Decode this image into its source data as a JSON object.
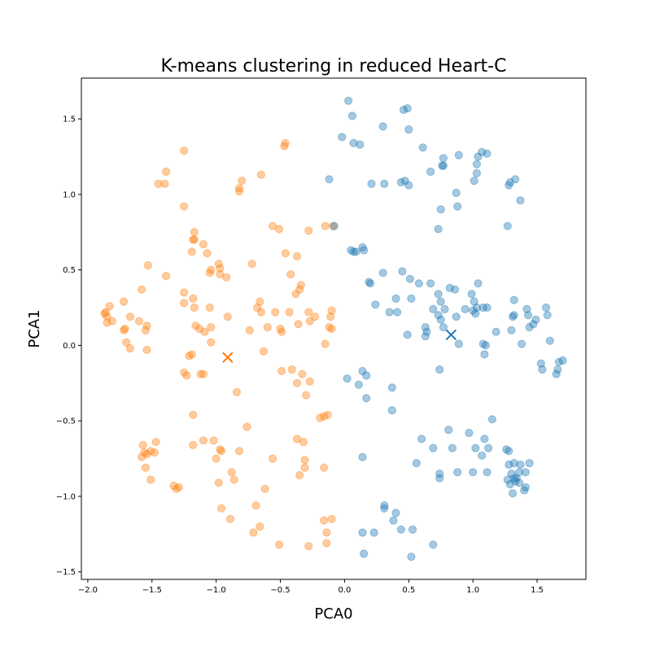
{
  "chart_data": {
    "type": "scatter",
    "title": "K-means clustering in reduced Heart-C",
    "xlabel": "PCA0",
    "ylabel": "PCA1",
    "xlim": [
      -2.05,
      1.88
    ],
    "ylim": [
      -1.55,
      1.77
    ],
    "xticks": [
      -2.0,
      -1.5,
      -1.0,
      -0.5,
      0.0,
      0.5,
      1.0,
      1.5
    ],
    "xtick_labels": [
      "−2.0",
      "−1.5",
      "−1.0",
      "−0.5",
      "0.0",
      "0.5",
      "1.0",
      "1.5"
    ],
    "yticks": [
      -1.5,
      -1.0,
      -0.5,
      0.0,
      0.5,
      1.0,
      1.5
    ],
    "ytick_labels": [
      "−1.5",
      "−1.0",
      "−0.5",
      "0.0",
      "0.5",
      "1.0",
      "1.5"
    ],
    "grid": false,
    "series": [
      {
        "color": "#ff7f0e",
        "marker": "circle",
        "alpha": 0.4,
        "points": [
          [
            -1.25,
            1.29
          ],
          [
            -1.39,
            1.15
          ],
          [
            -1.45,
            1.07
          ],
          [
            -1.4,
            1.07
          ],
          [
            -1.25,
            0.92
          ],
          [
            -0.8,
            1.09
          ],
          [
            -0.82,
            1.02
          ],
          [
            -0.82,
            1.04
          ],
          [
            -0.65,
            1.13
          ],
          [
            -0.47,
            1.32
          ],
          [
            -0.46,
            1.34
          ],
          [
            -0.56,
            0.79
          ],
          [
            -0.51,
            0.77
          ],
          [
            -0.46,
            0.61
          ],
          [
            -0.37,
            0.59
          ],
          [
            -0.28,
            0.76
          ],
          [
            -0.15,
            0.79
          ],
          [
            -0.09,
            0.79
          ],
          [
            -1.17,
            0.75
          ],
          [
            -1.18,
            0.7
          ],
          [
            -1.17,
            0.7
          ],
          [
            -1.1,
            0.67
          ],
          [
            -1.19,
            0.62
          ],
          [
            -1.07,
            0.61
          ],
          [
            -0.98,
            0.54
          ],
          [
            -0.97,
            0.51
          ],
          [
            -1.04,
            0.5
          ],
          [
            -1.05,
            0.48
          ],
          [
            -0.97,
            0.47
          ],
          [
            -0.92,
            0.45
          ],
          [
            -0.72,
            0.54
          ],
          [
            -1.53,
            0.53
          ],
          [
            -1.39,
            0.46
          ],
          [
            -1.58,
            0.37
          ],
          [
            -1.25,
            0.35
          ],
          [
            -1.18,
            0.31
          ],
          [
            -1.72,
            0.29
          ],
          [
            -1.25,
            0.28
          ],
          [
            -1.17,
            0.25
          ],
          [
            -1.05,
            0.25
          ],
          [
            -0.66,
            0.29
          ],
          [
            -0.42,
            0.47
          ],
          [
            -0.34,
            0.4
          ],
          [
            -0.35,
            0.37
          ],
          [
            -0.38,
            0.34
          ],
          [
            -1.86,
            0.22
          ],
          [
            -1.87,
            0.21
          ],
          [
            -1.83,
            0.26
          ],
          [
            -1.85,
            0.19
          ],
          [
            -1.81,
            0.16
          ],
          [
            -1.85,
            0.15
          ],
          [
            -1.67,
            0.19
          ],
          [
            -1.6,
            0.16
          ],
          [
            -1.54,
            0.13
          ],
          [
            -1.71,
            0.11
          ],
          [
            -1.72,
            0.1
          ],
          [
            -1.55,
            0.1
          ],
          [
            -1.16,
            0.13
          ],
          [
            -1.13,
            0.11
          ],
          [
            -1.09,
            0.09
          ],
          [
            -1.04,
            0.12
          ],
          [
            -0.91,
            0.19
          ],
          [
            -0.68,
            0.25
          ],
          [
            -0.65,
            0.22
          ],
          [
            -0.54,
            0.22
          ],
          [
            -0.43,
            0.22
          ],
          [
            -0.28,
            0.22
          ],
          [
            -0.23,
            0.19
          ],
          [
            -0.1,
            0.23
          ],
          [
            -0.11,
            0.19
          ],
          [
            -0.27,
            0.16
          ],
          [
            -0.36,
            0.14
          ],
          [
            -0.5,
            0.11
          ],
          [
            -0.49,
            0.09
          ],
          [
            -0.74,
            0.1
          ],
          [
            -0.6,
            0.12
          ],
          [
            -0.12,
            0.12
          ],
          [
            -0.1,
            0.11
          ],
          [
            -0.15,
            0.01
          ],
          [
            -1.7,
            0.02
          ],
          [
            -1.67,
            -0.02
          ],
          [
            -1.54,
            -0.03
          ],
          [
            -1.04,
            0.02
          ],
          [
            -0.63,
            -0.04
          ],
          [
            -1.21,
            -0.07
          ],
          [
            -1.19,
            -0.06
          ],
          [
            -1.25,
            -0.18
          ],
          [
            -1.23,
            -0.2
          ],
          [
            -1.12,
            -0.19
          ],
          [
            -1.1,
            -0.19
          ],
          [
            -0.49,
            -0.17
          ],
          [
            -0.41,
            -0.16
          ],
          [
            -0.33,
            -0.19
          ],
          [
            -0.37,
            -0.25
          ],
          [
            -0.27,
            -0.24
          ],
          [
            -0.3,
            -0.33
          ],
          [
            -0.84,
            -0.31
          ],
          [
            -0.19,
            -0.48
          ],
          [
            -0.16,
            -0.47
          ],
          [
            -0.13,
            -0.46
          ],
          [
            -1.18,
            -0.46
          ],
          [
            -0.76,
            -0.54
          ],
          [
            -1.57,
            -0.66
          ],
          [
            -1.56,
            -0.71
          ],
          [
            -1.51,
            -0.7
          ],
          [
            -1.48,
            -0.71
          ],
          [
            -1.54,
            -0.72
          ],
          [
            -1.58,
            -0.74
          ],
          [
            -1.47,
            -0.64
          ],
          [
            -1.18,
            -0.66
          ],
          [
            -1.1,
            -0.63
          ],
          [
            -1.02,
            -0.63
          ],
          [
            -0.96,
            -0.7
          ],
          [
            -0.97,
            -0.69
          ],
          [
            -0.82,
            -0.7
          ],
          [
            -1.0,
            -0.75
          ],
          [
            -0.37,
            -0.62
          ],
          [
            -0.32,
            -0.64
          ],
          [
            -0.56,
            -0.75
          ],
          [
            -0.31,
            -0.76
          ],
          [
            -0.31,
            -0.81
          ],
          [
            -0.35,
            -0.86
          ],
          [
            -0.16,
            -0.81
          ],
          [
            -1.55,
            -0.81
          ],
          [
            -1.51,
            -0.89
          ],
          [
            -0.88,
            -0.84
          ],
          [
            -0.86,
            -0.89
          ],
          [
            -0.98,
            -0.91
          ],
          [
            -1.31,
            -0.95
          ],
          [
            -1.33,
            -0.93
          ],
          [
            -1.29,
            -0.94
          ],
          [
            -0.62,
            -0.95
          ],
          [
            -0.96,
            -1.08
          ],
          [
            -0.69,
            -1.06
          ],
          [
            -0.89,
            -1.15
          ],
          [
            -0.66,
            -1.2
          ],
          [
            -0.71,
            -1.24
          ],
          [
            -0.51,
            -1.32
          ],
          [
            -0.16,
            -1.16
          ],
          [
            -0.1,
            -1.15
          ],
          [
            -0.14,
            -1.24
          ],
          [
            -0.14,
            -1.31
          ],
          [
            -0.28,
            -1.33
          ]
        ]
      },
      {
        "color": "#1f77b4",
        "marker": "circle",
        "alpha": 0.4,
        "points": [
          [
            0.03,
            1.62
          ],
          [
            0.06,
            1.52
          ],
          [
            0.46,
            1.56
          ],
          [
            0.49,
            1.57
          ],
          [
            0.3,
            1.45
          ],
          [
            0.5,
            1.43
          ],
          [
            -0.02,
            1.38
          ],
          [
            0.07,
            1.34
          ],
          [
            0.12,
            1.33
          ],
          [
            0.61,
            1.31
          ],
          [
            0.77,
            1.24
          ],
          [
            0.76,
            1.19
          ],
          [
            0.77,
            1.19
          ],
          [
            0.89,
            1.26
          ],
          [
            1.04,
            1.25
          ],
          [
            1.07,
            1.28
          ],
          [
            1.11,
            1.27
          ],
          [
            0.67,
            1.15
          ],
          [
            1.03,
            1.2
          ],
          [
            1.03,
            1.14
          ],
          [
            -0.12,
            1.1
          ],
          [
            0.21,
            1.07
          ],
          [
            0.31,
            1.07
          ],
          [
            0.44,
            1.08
          ],
          [
            0.47,
            1.09
          ],
          [
            0.5,
            1.06
          ],
          [
            1.01,
            1.09
          ],
          [
            1.28,
            1.06
          ],
          [
            1.29,
            1.08
          ],
          [
            1.33,
            1.1
          ],
          [
            1.37,
            0.96
          ],
          [
            0.87,
            1.01
          ],
          [
            0.75,
            0.9
          ],
          [
            0.88,
            0.92
          ],
          [
            0.73,
            0.77
          ],
          [
            1.27,
            0.79
          ],
          [
            -0.08,
            0.79
          ],
          [
            0.05,
            0.63
          ],
          [
            0.07,
            0.62
          ],
          [
            0.09,
            0.62
          ],
          [
            0.14,
            0.65
          ],
          [
            0.15,
            0.63
          ],
          [
            0.3,
            0.48
          ],
          [
            0.45,
            0.49
          ],
          [
            0.51,
            0.44
          ],
          [
            0.2,
            0.41
          ],
          [
            0.19,
            0.42
          ],
          [
            0.58,
            0.41
          ],
          [
            0.67,
            0.41
          ],
          [
            0.82,
            0.38
          ],
          [
            1.04,
            0.41
          ],
          [
            0.86,
            0.37
          ],
          [
            0.73,
            0.34
          ],
          [
            0.4,
            0.31
          ],
          [
            0.52,
            0.31
          ],
          [
            0.75,
            0.29
          ],
          [
            0.78,
            0.24
          ],
          [
            0.99,
            0.34
          ],
          [
            1.01,
            0.29
          ],
          [
            1.03,
            0.25
          ],
          [
            1.08,
            0.25
          ],
          [
            1.11,
            0.25
          ],
          [
            1.02,
            0.21
          ],
          [
            1.0,
            0.23
          ],
          [
            0.94,
            0.24
          ],
          [
            0.24,
            0.27
          ],
          [
            0.35,
            0.22
          ],
          [
            0.41,
            0.22
          ],
          [
            0.69,
            0.24
          ],
          [
            0.73,
            0.2
          ],
          [
            0.75,
            0.17
          ],
          [
            0.87,
            0.19
          ],
          [
            0.63,
            0.12
          ],
          [
            0.64,
            0.09
          ],
          [
            0.77,
            0.12
          ],
          [
            0.49,
            0.07
          ],
          [
            0.63,
            0.06
          ],
          [
            1.32,
            0.3
          ],
          [
            1.31,
            0.19
          ],
          [
            1.32,
            0.2
          ],
          [
            1.42,
            0.24
          ],
          [
            1.43,
            0.2
          ],
          [
            1.47,
            0.14
          ],
          [
            1.44,
            0.12
          ],
          [
            1.49,
            0.17
          ],
          [
            1.57,
            0.25
          ],
          [
            1.58,
            0.2
          ],
          [
            1.18,
            0.09
          ],
          [
            1.3,
            0.1
          ],
          [
            1.38,
            0.01
          ],
          [
            1.08,
            0.01
          ],
          [
            1.1,
            0.0
          ],
          [
            1.09,
            -0.06
          ],
          [
            0.89,
            0.01
          ],
          [
            1.6,
            0.03
          ],
          [
            1.53,
            -0.12
          ],
          [
            1.54,
            -0.16
          ],
          [
            1.66,
            -0.16
          ],
          [
            1.65,
            -0.19
          ],
          [
            1.67,
            -0.11
          ],
          [
            1.7,
            -0.1
          ],
          [
            0.74,
            -0.16
          ],
          [
            0.14,
            -0.17
          ],
          [
            0.17,
            -0.2
          ],
          [
            0.02,
            -0.22
          ],
          [
            0.11,
            -0.26
          ],
          [
            0.17,
            -0.35
          ],
          [
            0.37,
            -0.28
          ],
          [
            0.37,
            -0.43
          ],
          [
            0.81,
            -0.56
          ],
          [
            0.97,
            -0.58
          ],
          [
            1.15,
            -0.49
          ],
          [
            1.09,
            -0.62
          ],
          [
            0.6,
            -0.62
          ],
          [
            0.69,
            -0.68
          ],
          [
            0.84,
            -0.68
          ],
          [
            1.02,
            -0.68
          ],
          [
            1.12,
            -0.68
          ],
          [
            1.26,
            -0.69
          ],
          [
            1.28,
            -0.7
          ],
          [
            1.07,
            -0.73
          ],
          [
            0.14,
            -0.74
          ],
          [
            0.56,
            -0.78
          ],
          [
            1.28,
            -0.79
          ],
          [
            1.32,
            -0.78
          ],
          [
            1.37,
            -0.79
          ],
          [
            1.44,
            -0.78
          ],
          [
            1.36,
            -0.84
          ],
          [
            1.41,
            -0.84
          ],
          [
            1.3,
            -0.85
          ],
          [
            1.32,
            -0.88
          ],
          [
            1.34,
            -0.88
          ],
          [
            1.27,
            -0.89
          ],
          [
            1.33,
            -0.9
          ],
          [
            1.29,
            -0.92
          ],
          [
            1.36,
            -0.91
          ],
          [
            1.41,
            -0.94
          ],
          [
            1.4,
            -0.96
          ],
          [
            1.31,
            -0.98
          ],
          [
            0.74,
            -0.85
          ],
          [
            0.74,
            -0.88
          ],
          [
            0.88,
            -0.84
          ],
          [
            1.0,
            -0.84
          ],
          [
            1.11,
            -0.84
          ],
          [
            0.31,
            -1.06
          ],
          [
            0.31,
            -1.08
          ],
          [
            0.4,
            -1.11
          ],
          [
            0.38,
            -1.16
          ],
          [
            0.14,
            -1.24
          ],
          [
            0.23,
            -1.24
          ],
          [
            0.44,
            -1.22
          ],
          [
            0.53,
            -1.22
          ],
          [
            0.69,
            -1.32
          ],
          [
            0.15,
            -1.38
          ],
          [
            0.52,
            -1.4
          ]
        ]
      }
    ],
    "centroids": [
      {
        "x": -0.91,
        "y": -0.08,
        "color": "#ff7f0e",
        "marker": "x"
      },
      {
        "x": 0.83,
        "y": 0.07,
        "color": "#1f77b4",
        "marker": "x"
      }
    ]
  }
}
